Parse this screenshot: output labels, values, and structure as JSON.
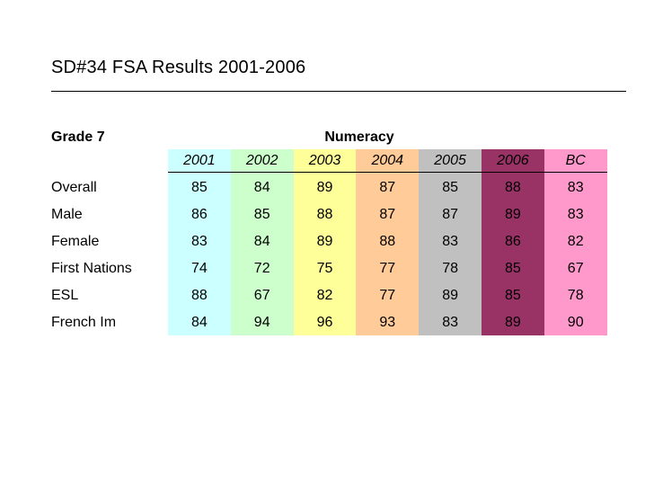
{
  "title": "SD#34 FSA Results 2001-2006",
  "grade": "Grade 7",
  "subject": "Numeracy",
  "columns": [
    {
      "label": "2001",
      "color": "#ccffff"
    },
    {
      "label": "2002",
      "color": "#ccffcc"
    },
    {
      "label": "2003",
      "color": "#ffff99"
    },
    {
      "label": "2004",
      "color": "#ffcc99"
    },
    {
      "label": "2005",
      "color": "#c0c0c0"
    },
    {
      "label": "2006",
      "color": "#993366"
    },
    {
      "label": "BC",
      "color": "#ff99cc"
    }
  ],
  "rows": [
    {
      "label": "Overall",
      "values": [
        "85",
        "84",
        "89",
        "87",
        "85",
        "88",
        "83"
      ]
    },
    {
      "label": "Male",
      "values": [
        "86",
        "85",
        "88",
        "87",
        "87",
        "89",
        "83"
      ]
    },
    {
      "label": "Female",
      "values": [
        "83",
        "84",
        "89",
        "88",
        "83",
        "86",
        "82"
      ]
    },
    {
      "label": "First Nations",
      "values": [
        "74",
        "72",
        "75",
        "77",
        "78",
        "85",
        "67"
      ]
    },
    {
      "label": "ESL",
      "values": [
        "88",
        "67",
        "82",
        "77",
        "89",
        "85",
        "78"
      ]
    },
    {
      "label": "French Im",
      "values": [
        "84",
        "94",
        "96",
        "93",
        "83",
        "89",
        "90"
      ]
    }
  ]
}
